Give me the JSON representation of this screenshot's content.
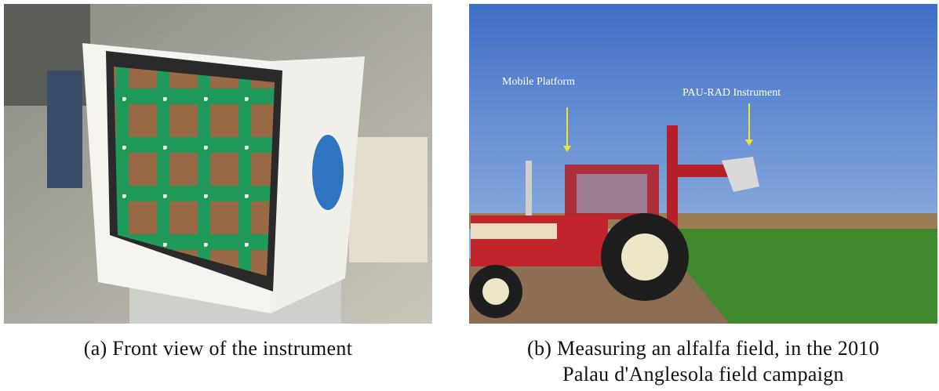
{
  "subfigures": [
    {
      "caption": "(a) Front view of the instrument"
    },
    {
      "annotations": [
        "Mobile Platform",
        "PAU-RAD Instrument"
      ],
      "caption_lines": [
        "(b) Measuring an alfalfa field, in the 2010",
        "Palau d'Anglesola field campaign"
      ]
    }
  ]
}
